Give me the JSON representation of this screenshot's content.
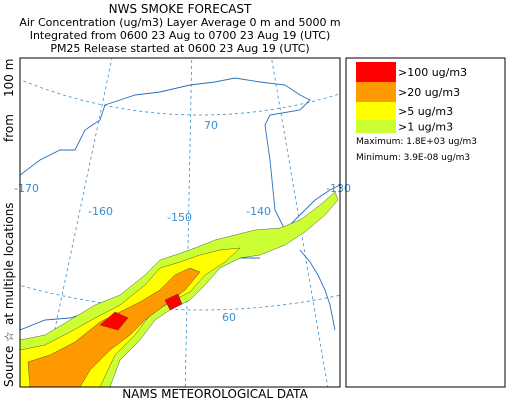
{
  "header": {
    "title": "NWS SMOKE FORECAST",
    "lines": [
      "Air Concentration (ug/m3) Layer Average    0 m and  5000 m",
      "Integrated from 0600 23 Aug to 0700 23 Aug 19 (UTC)",
      "PM25 Release started at 0600 23 Aug 19 (UTC)"
    ]
  },
  "legend": {
    "items": [
      {
        "label": ">100 ug/m3",
        "color": "#ff0000"
      },
      {
        "label": ">20 ug/m3",
        "color": "#ff9900"
      },
      {
        "label": ">5 ug/m3",
        "color": "#ffff00"
      },
      {
        "label": ">1 ug/m3",
        "color": "#ccff33"
      }
    ],
    "maximum": "Maximum: 1.8E+03 ug/m3",
    "minimum": "Minimum: 3.9E-08 ug/m3"
  },
  "map": {
    "longitude_labels": [
      "-170",
      "-160",
      "-150",
      "-140",
      "-130"
    ],
    "latitude_labels": [
      "70",
      "60"
    ]
  },
  "side_label": [
    "Source ☆",
    "at multiple locations",
    "from",
    "100 m"
  ],
  "footer": "NAMS METEOROLOGICAL DATA"
}
